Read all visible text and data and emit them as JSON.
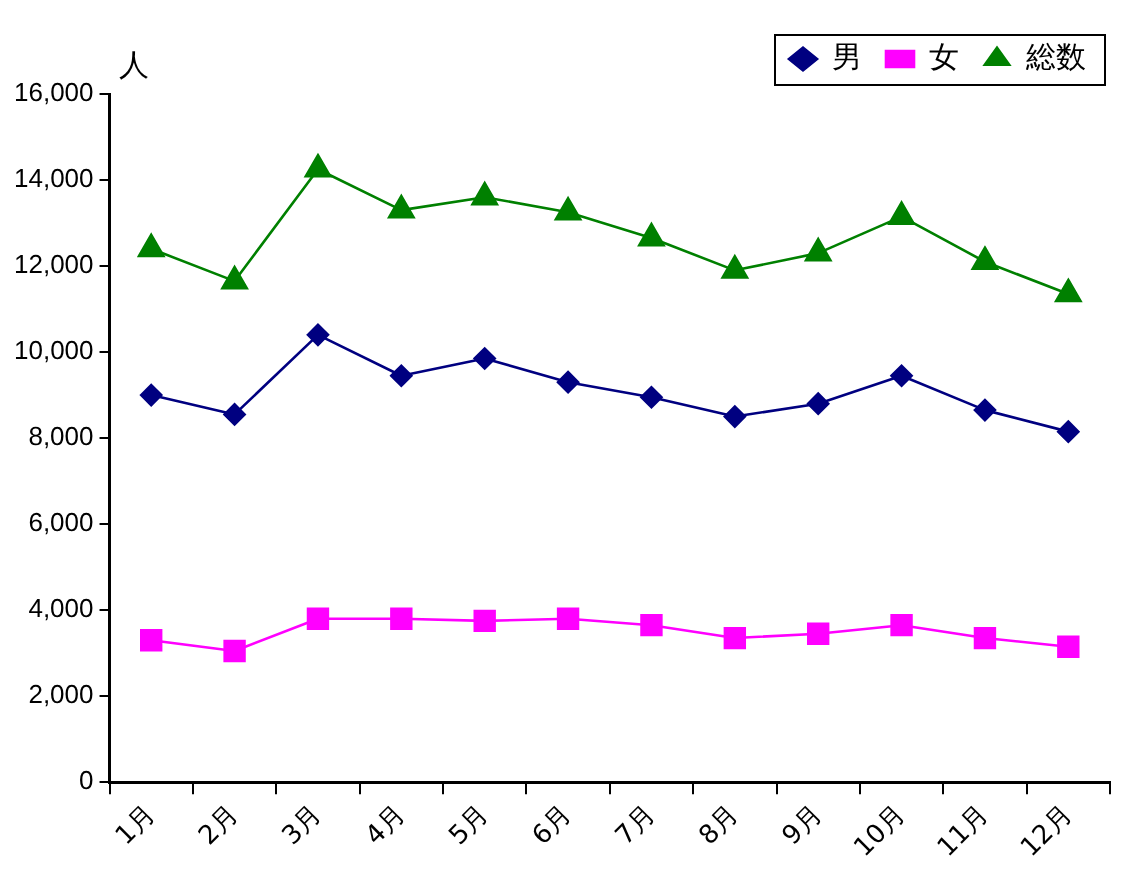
{
  "chart_data": {
    "type": "line",
    "ylabel": "人",
    "categories": [
      "1月",
      "2月",
      "3月",
      "4月",
      "5月",
      "6月",
      "7月",
      "8月",
      "9月",
      "10月",
      "11月",
      "12月"
    ],
    "series": [
      {
        "name": "男",
        "color": "#000080",
        "marker": "diamond",
        "values": [
          9000,
          8550,
          10400,
          9450,
          9850,
          9300,
          8950,
          8500,
          8800,
          9450,
          8650,
          8150
        ]
      },
      {
        "name": "女",
        "color": "#ff00ff",
        "marker": "square",
        "values": [
          3300,
          3050,
          3800,
          3800,
          3750,
          3800,
          3650,
          3350,
          3450,
          3650,
          3350,
          3150
        ]
      },
      {
        "name": "総数",
        "color": "#008000",
        "marker": "triangle",
        "values": [
          12400,
          11650,
          14250,
          13300,
          13600,
          13250,
          12650,
          11900,
          12300,
          13150,
          12100,
          11350
        ]
      }
    ],
    "ylim": [
      0,
      16000
    ],
    "yticks": [
      0,
      {
        "value": 2000,
        "label": "2,000"
      },
      {
        "value": 4000,
        "label": "4,000"
      },
      {
        "value": 6000,
        "label": "6,000"
      },
      {
        "value": 8000,
        "label": "8,000"
      },
      {
        "value": 10000,
        "label": "10,000"
      },
      {
        "value": 12000,
        "label": "12,000"
      },
      {
        "value": 14000,
        "label": "14,000"
      },
      {
        "value": 16000,
        "label": "16,000"
      }
    ],
    "grid": false,
    "legend": "top right"
  }
}
